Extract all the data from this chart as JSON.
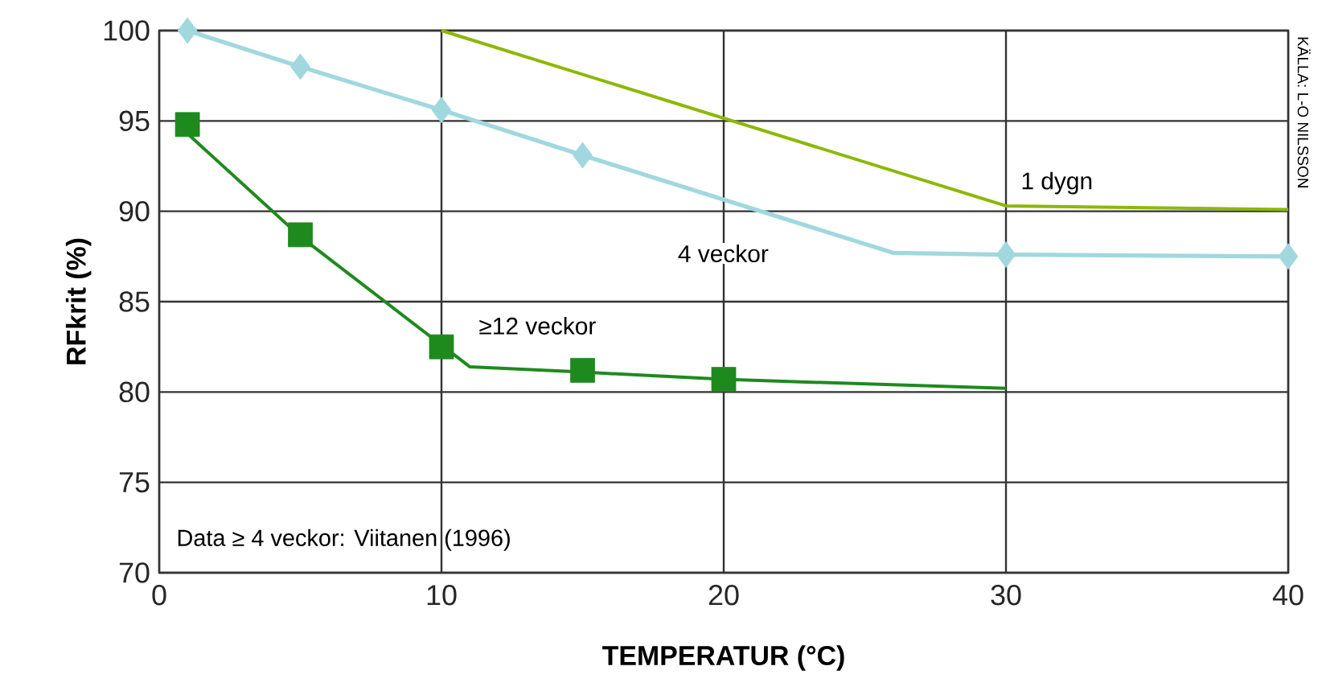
{
  "chart_data": {
    "type": "line",
    "xlabel": "TEMPERATUR (°C)",
    "ylabel": "RFkrit (%)",
    "xlim": [
      0,
      40
    ],
    "ylim": [
      70,
      100
    ],
    "xticks": [
      0,
      10,
      20,
      30,
      40
    ],
    "yticks": [
      70,
      75,
      80,
      85,
      90,
      95,
      100
    ],
    "grid": true,
    "annotations": [
      "Data ≥ 4 veckor: Viitanen (1996)",
      "KÄLLA: L-O NILSSON"
    ],
    "series": [
      {
        "name": "1 dygn",
        "marker": "none",
        "color": "#8cb800",
        "x": [
          10,
          30,
          40
        ],
        "values": [
          100,
          90.3,
          90.1
        ]
      },
      {
        "name": "4 veckor",
        "marker": "none",
        "color": "#a0d8de",
        "x": [
          1,
          5,
          10,
          15,
          26,
          30,
          40
        ],
        "values": [
          100,
          98,
          95.6,
          93.1,
          87.7,
          87.6,
          87.5
        ]
      },
      {
        "type": "scatter",
        "marker": "diamond",
        "color": "#a0d8de",
        "x": [
          1,
          5,
          10,
          15,
          30,
          40
        ],
        "values": [
          100,
          98,
          95.6,
          93.1,
          87.6,
          87.5
        ]
      },
      {
        "name": "≥12 veckor",
        "marker": "none",
        "color": "#1e8a1e",
        "x": [
          1,
          5,
          10,
          11,
          15,
          20,
          30
        ],
        "values": [
          94.3,
          88.6,
          82.6,
          81.4,
          81.1,
          80.7,
          80.2
        ]
      },
      {
        "type": "scatter",
        "marker": "square",
        "color": "#1e8a1e",
        "x": [
          1,
          5,
          10,
          15,
          20
        ],
        "values": [
          94.8,
          88.7,
          82.5,
          81.2,
          80.7
        ]
      }
    ]
  }
}
